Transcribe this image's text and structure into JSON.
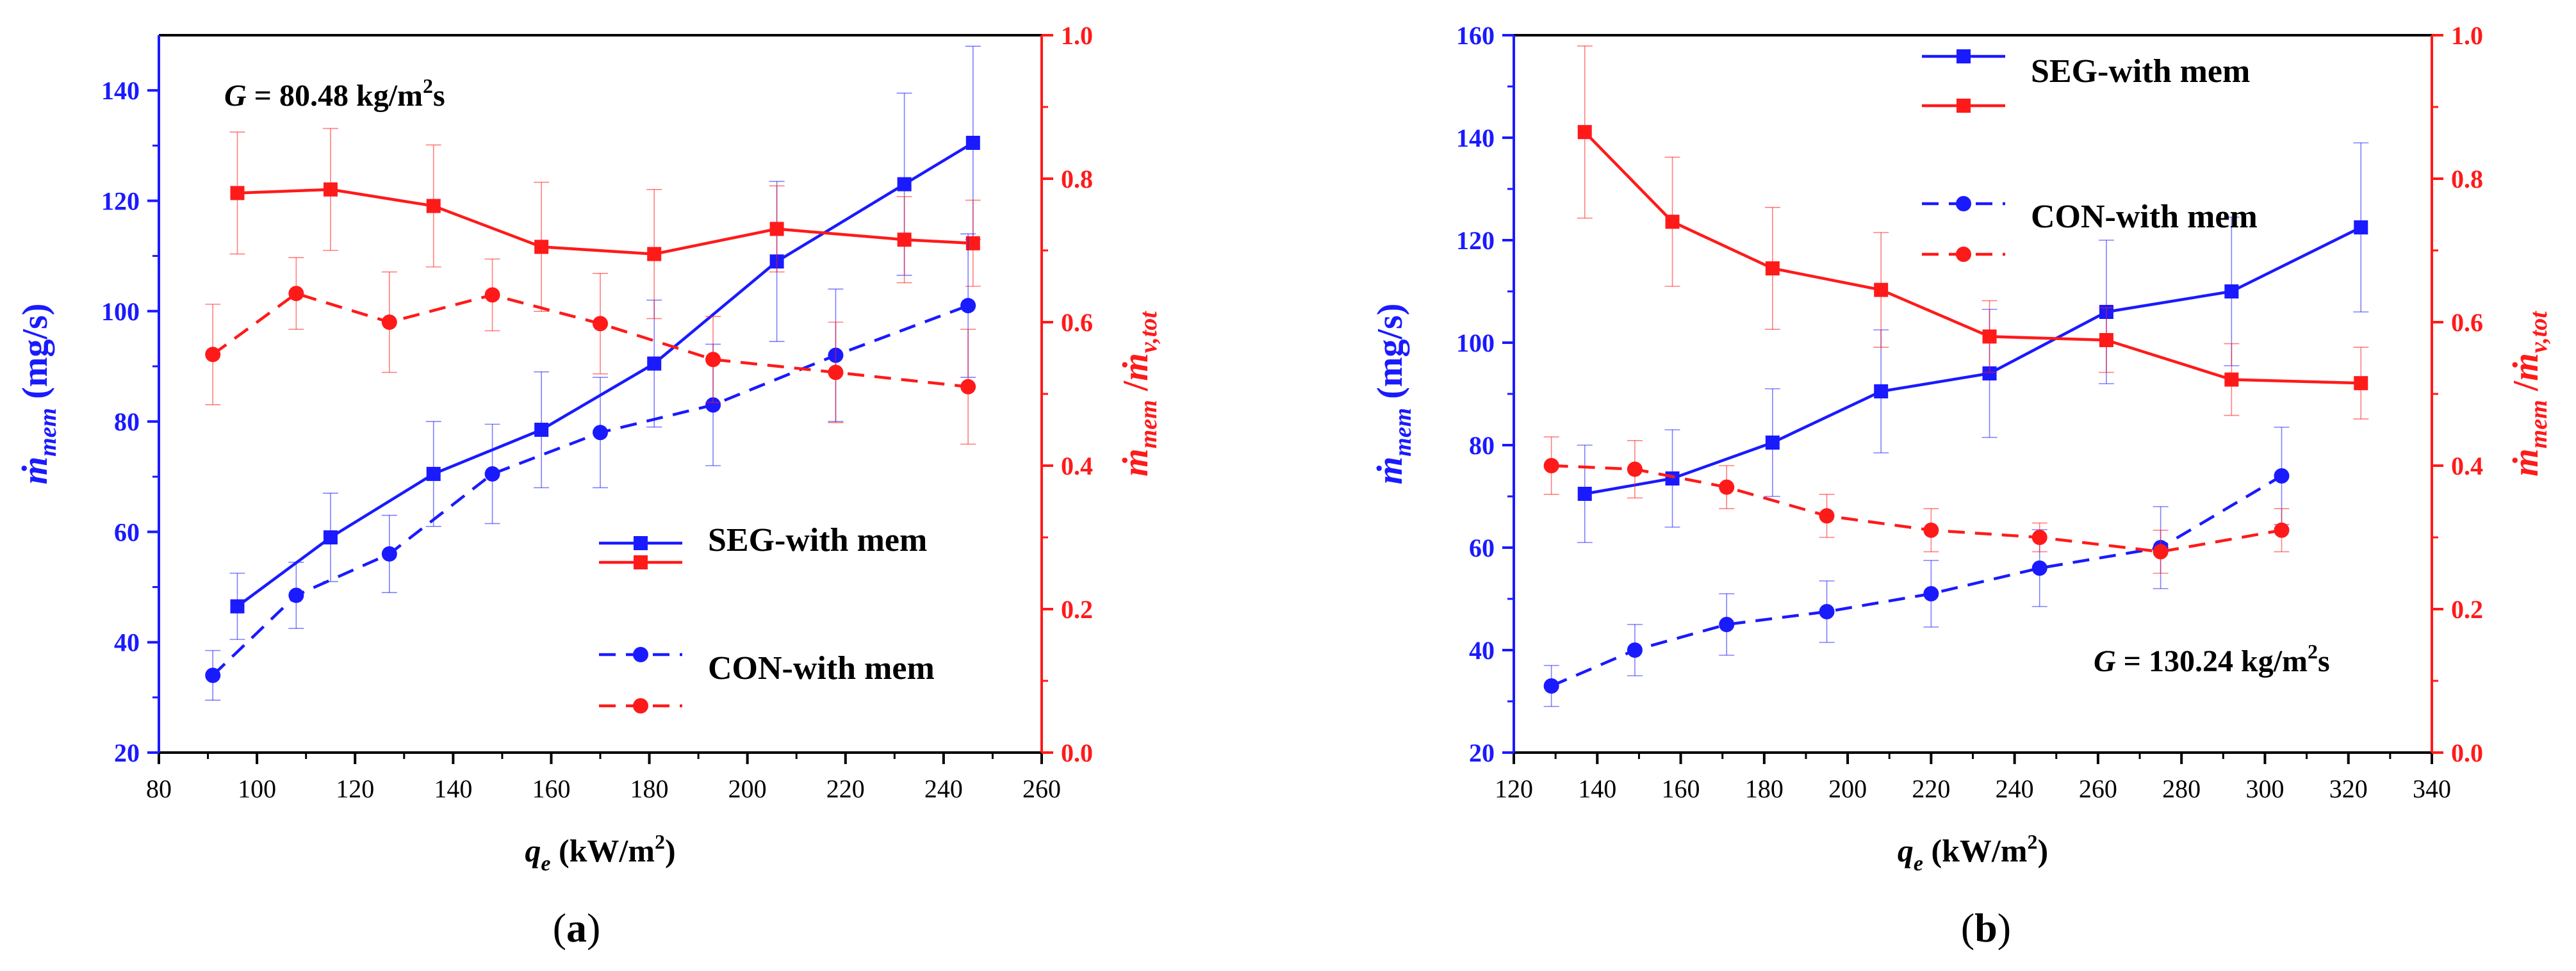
{
  "chart_data": [
    {
      "type": "line",
      "panel_label": "(a)",
      "annotation": {
        "label": "G",
        "value": "= 80.48 kg/m",
        "sup": "2",
        "suffix": "s"
      },
      "xlabel": {
        "main": "q",
        "sub": "e",
        "unit": " (kW/m",
        "sup": "2",
        "close": ")"
      },
      "ylabel_left": {
        "main": "ṁ",
        "sub": "mem",
        "unit": " (mg/s)"
      },
      "ylabel_right": {
        "a": "ṁ",
        "a_sub": "mem",
        "sep": " /",
        "b": "ṁ",
        "b_sub": "v,tot"
      },
      "xlim": [
        80,
        260
      ],
      "xticks": [
        80,
        100,
        120,
        140,
        160,
        180,
        200,
        220,
        240,
        260
      ],
      "ylim_left": [
        20,
        150
      ],
      "yticks_left": [
        20,
        40,
        60,
        80,
        100,
        120,
        140
      ],
      "ylim_right": [
        0.0,
        1.0
      ],
      "yticks_right": [
        "0.0",
        "0.2",
        "0.4",
        "0.6",
        "0.8",
        "1.0"
      ],
      "legend": [
        {
          "label": "SEG-with mem",
          "color": "#1a1aff",
          "dashed": false,
          "marker": "square"
        },
        {
          "label": "SEG-with mem",
          "color": "#ff1a1a",
          "dashed": false,
          "marker": "square"
        },
        {
          "label": "CON-with mem",
          "color": "#1a1aff",
          "dashed": true,
          "marker": "circle"
        },
        {
          "label": "CON-with mem",
          "color": "#ff1a1a",
          "dashed": true,
          "marker": "circle"
        }
      ],
      "series": [
        {
          "name": "SEG-with mem ṁmem",
          "axis": "left",
          "color": "#1a1aff",
          "dashed": false,
          "marker": "square",
          "x": [
            96,
            115,
            136,
            158,
            181,
            206,
            232,
            246
          ],
          "y": [
            46.5,
            59,
            70.5,
            78.5,
            90.5,
            109,
            123,
            130.5
          ],
          "err": [
            6,
            8,
            9.5,
            10.5,
            11.5,
            14.5,
            16.5,
            17.5
          ]
        },
        {
          "name": "SEG-with mem ratio",
          "axis": "right",
          "color": "#ff1a1a",
          "dashed": false,
          "marker": "square",
          "x": [
            96,
            115,
            136,
            158,
            181,
            206,
            232,
            246
          ],
          "y": [
            0.78,
            0.785,
            0.762,
            0.705,
            0.695,
            0.73,
            0.715,
            0.71
          ],
          "err": [
            0.085,
            0.085,
            0.085,
            0.09,
            0.09,
            0.06,
            0.06,
            0.06
          ]
        },
        {
          "name": "CON-with mem ṁmem",
          "axis": "left",
          "color": "#1a1aff",
          "dashed": true,
          "marker": "circle",
          "x": [
            91,
            108,
            127,
            148,
            170,
            193,
            218,
            245
          ],
          "y": [
            34,
            48.5,
            56,
            70.5,
            78,
            83,
            92,
            101
          ],
          "err": [
            4.5,
            6,
            7,
            9,
            10,
            11,
            12,
            13
          ]
        },
        {
          "name": "CON-with mem ratio",
          "axis": "right",
          "color": "#ff1a1a",
          "dashed": true,
          "marker": "circle",
          "x": [
            91,
            108,
            127,
            148,
            170,
            193,
            218,
            245
          ],
          "y": [
            0.555,
            0.64,
            0.6,
            0.638,
            0.598,
            0.548,
            0.53,
            0.51
          ],
          "err": [
            0.07,
            0.05,
            0.07,
            0.05,
            0.07,
            0.06,
            0.07,
            0.08
          ]
        }
      ]
    },
    {
      "type": "line",
      "panel_label": "(b)",
      "annotation": {
        "label": "G",
        "value": "= 130.24 kg/m",
        "sup": "2",
        "suffix": "s"
      },
      "xlabel": {
        "main": "q",
        "sub": "e",
        "unit": " (kW/m",
        "sup": "2",
        "close": ")"
      },
      "ylabel_left": {
        "main": "ṁ",
        "sub": "mem",
        "unit": " (mg/s)"
      },
      "ylabel_right": {
        "a": "ṁ",
        "a_sub": "mem",
        "sep": " /",
        "b": "ṁ",
        "b_sub": "v,tot"
      },
      "xlim": [
        120,
        340
      ],
      "xticks": [
        120,
        140,
        160,
        180,
        200,
        220,
        240,
        260,
        280,
        300,
        320,
        340
      ],
      "ylim_left": [
        20,
        160
      ],
      "yticks_left": [
        20,
        40,
        60,
        80,
        100,
        120,
        140,
        160
      ],
      "ylim_right": [
        0.0,
        1.0
      ],
      "yticks_right": [
        "0.0",
        "0.2",
        "0.4",
        "0.6",
        "0.8",
        "1.0"
      ],
      "legend": [
        {
          "label": "SEG-with mem",
          "color": "#1a1aff",
          "dashed": false,
          "marker": "square"
        },
        {
          "label": "SEG-with mem",
          "color": "#ff1a1a",
          "dashed": false,
          "marker": "square"
        },
        {
          "label": "CON-with mem",
          "color": "#1a1aff",
          "dashed": true,
          "marker": "circle"
        },
        {
          "label": "CON-with mem",
          "color": "#ff1a1a",
          "dashed": true,
          "marker": "circle"
        }
      ],
      "series": [
        {
          "name": "SEG-with mem ṁmem",
          "axis": "left",
          "color": "#1a1aff",
          "dashed": false,
          "marker": "square",
          "x": [
            137,
            158,
            182,
            208,
            234,
            262,
            292,
            323
          ],
          "y": [
            70.5,
            73.5,
            80.5,
            90.5,
            94,
            106,
            110,
            122.5
          ],
          "err": [
            9.5,
            9.5,
            10.5,
            12,
            12.5,
            14,
            14.5,
            16.5
          ]
        },
        {
          "name": "SEG-with mem ratio",
          "axis": "right",
          "color": "#ff1a1a",
          "dashed": false,
          "marker": "square",
          "x": [
            137,
            158,
            182,
            208,
            234,
            262,
            292,
            323
          ],
          "y": [
            0.865,
            0.74,
            0.675,
            0.645,
            0.58,
            0.575,
            0.52,
            0.515
          ],
          "err": [
            0.12,
            0.09,
            0.085,
            0.08,
            0.05,
            0.045,
            0.05,
            0.05
          ]
        },
        {
          "name": "CON-with mem ṁmem",
          "axis": "left",
          "color": "#1a1aff",
          "dashed": true,
          "marker": "circle",
          "x": [
            129,
            149,
            171,
            195,
            220,
            246,
            275,
            304
          ],
          "y": [
            33,
            40,
            45,
            47.5,
            51,
            56,
            60,
            74
          ],
          "err": [
            4,
            5,
            6,
            6,
            6.5,
            7.5,
            8,
            9.5
          ]
        },
        {
          "name": "CON-with mem ratio",
          "axis": "right",
          "color": "#ff1a1a",
          "dashed": true,
          "marker": "circle",
          "x": [
            129,
            149,
            171,
            195,
            220,
            246,
            275,
            304
          ],
          "y": [
            0.4,
            0.395,
            0.37,
            0.33,
            0.31,
            0.3,
            0.28,
            0.31
          ],
          "err": [
            0.04,
            0.04,
            0.03,
            0.03,
            0.03,
            0.02,
            0.03,
            0.03
          ]
        }
      ]
    }
  ]
}
